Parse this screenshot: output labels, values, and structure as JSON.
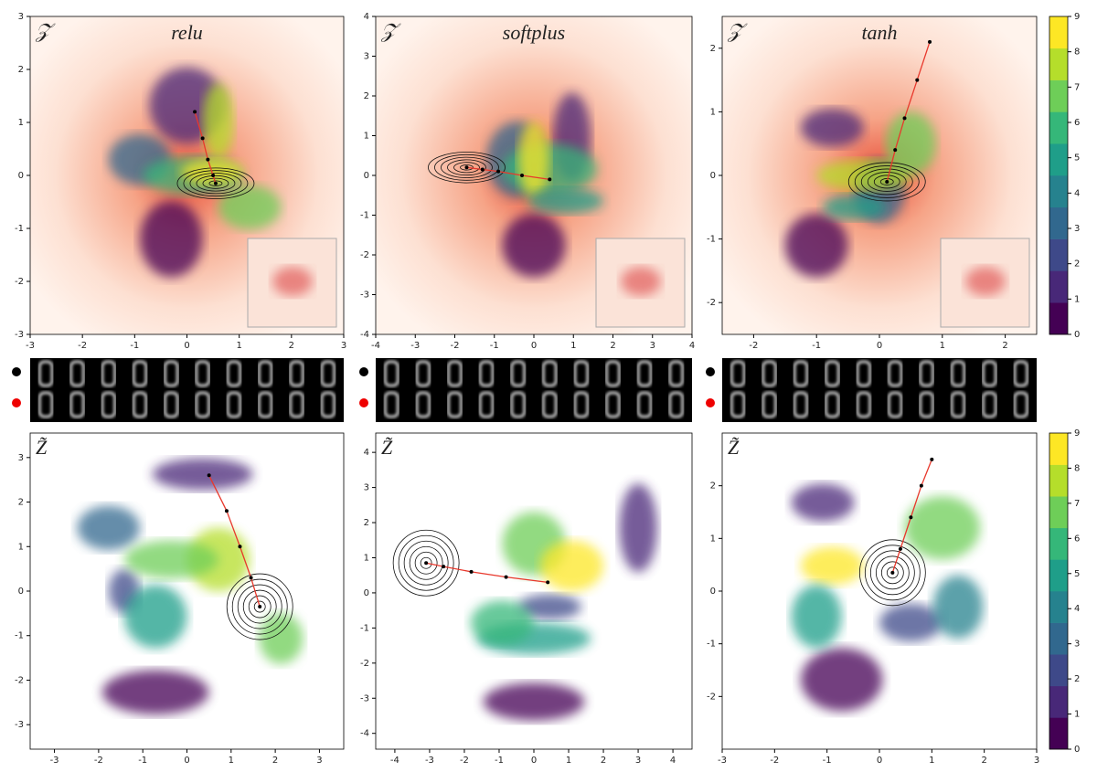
{
  "chart_data": [
    {
      "type": "scatter",
      "label": "𝒵",
      "title": "relu",
      "heatmap": true,
      "xlim": [
        -3,
        3
      ],
      "ylim": [
        -3,
        3
      ],
      "xticks": [
        -3,
        -2,
        -1,
        0,
        1,
        2,
        3
      ],
      "yticks": [
        -3,
        -2,
        -1,
        0,
        1,
        2,
        3
      ],
      "series": [
        {
          "color": "#e8382c",
          "x": [
            0.15,
            0.3,
            0.4,
            0.5,
            0.55
          ],
          "values": [
            1.2,
            0.7,
            0.3,
            0.0,
            -0.15
          ]
        }
      ]
    },
    {
      "type": "scatter",
      "label": "𝒵",
      "title": "softplus",
      "heatmap": true,
      "xlim": [
        -4,
        4
      ],
      "ylim": [
        -4,
        4
      ],
      "xticks": [
        -4,
        -3,
        -2,
        -1,
        0,
        1,
        2,
        3,
        4
      ],
      "yticks": [
        -4,
        -3,
        -2,
        -1,
        0,
        1,
        2,
        3,
        4
      ],
      "series": [
        {
          "color": "#e8382c",
          "x": [
            0.4,
            -0.3,
            -0.9,
            -1.3,
            -1.7
          ],
          "values": [
            -0.1,
            0.0,
            0.1,
            0.15,
            0.2
          ]
        }
      ]
    },
    {
      "type": "scatter",
      "label": "𝒵",
      "title": "tanh",
      "heatmap": true,
      "xlim": [
        -2.5,
        2.5
      ],
      "ylim": [
        -2.5,
        2.5
      ],
      "xticks": [
        -2,
        -1,
        0,
        1,
        2
      ],
      "yticks": [
        -2,
        -1,
        0,
        1,
        2
      ],
      "series": [
        {
          "color": "#e8382c",
          "x": [
            0.8,
            0.6,
            0.4,
            0.25,
            0.12
          ],
          "values": [
            2.1,
            1.5,
            0.9,
            0.4,
            -0.1
          ]
        }
      ]
    },
    {
      "type": "scatter",
      "label": "Z̃",
      "heatmap": false,
      "xlim": [
        -3.55,
        3.55
      ],
      "ylim": [
        -3.55,
        3.55
      ],
      "xticks": [
        -3,
        -2,
        -1,
        0,
        1,
        2,
        3
      ],
      "yticks": [
        -3,
        -2,
        -1,
        0,
        1,
        2,
        3
      ],
      "series": [
        {
          "color": "#e8382c",
          "x": [
            0.5,
            0.9,
            1.2,
            1.45,
            1.65
          ],
          "values": [
            2.6,
            1.8,
            1.0,
            0.3,
            -0.35
          ]
        }
      ]
    },
    {
      "type": "scatter",
      "label": "Z̃",
      "heatmap": false,
      "xlim": [
        -4.55,
        4.55
      ],
      "ylim": [
        -4.45,
        4.55
      ],
      "xticks": [
        -4,
        -3,
        -2,
        -1,
        0,
        1,
        2,
        3,
        4
      ],
      "yticks": [
        -4,
        -3,
        -2,
        -1,
        0,
        1,
        2,
        3,
        4
      ],
      "series": [
        {
          "color": "#e8382c",
          "x": [
            0.4,
            -0.8,
            -1.8,
            -2.6,
            -3.1
          ],
          "values": [
            0.3,
            0.45,
            0.6,
            0.75,
            0.85
          ]
        }
      ]
    },
    {
      "type": "scatter",
      "label": "Z̃",
      "heatmap": false,
      "xlim": [
        -3,
        3
      ],
      "ylim": [
        -3,
        3
      ],
      "xticks": [
        -3,
        -2,
        -1,
        0,
        1,
        2,
        3
      ],
      "yticks": [
        -2,
        -1,
        0,
        1,
        2
      ],
      "series": [
        {
          "color": "#e8382c",
          "x": [
            1.0,
            0.8,
            0.6,
            0.4,
            0.25
          ],
          "values": [
            2.5,
            2.0,
            1.4,
            0.8,
            0.35
          ]
        }
      ]
    },
    {
      "type": "colorbar",
      "ylim": [
        0,
        9
      ],
      "yticks": [
        0,
        1,
        2,
        3,
        4,
        5,
        6,
        7,
        8,
        9
      ],
      "colors": [
        "#440154",
        "#482878",
        "#3e4989",
        "#31688e",
        "#26828e",
        "#1f9e89",
        "#35b779",
        "#6ece58",
        "#b5de2b",
        "#fde725"
      ]
    },
    {
      "type": "colorbar",
      "ylim": [
        0,
        9
      ],
      "yticks": [
        0,
        1,
        2,
        3,
        4,
        5,
        6,
        7,
        8,
        9
      ],
      "colors": [
        "#440154",
        "#482878",
        "#3e4989",
        "#31688e",
        "#26828e",
        "#1f9e89",
        "#35b779",
        "#6ece58",
        "#b5de2b",
        "#fde725"
      ]
    }
  ]
}
